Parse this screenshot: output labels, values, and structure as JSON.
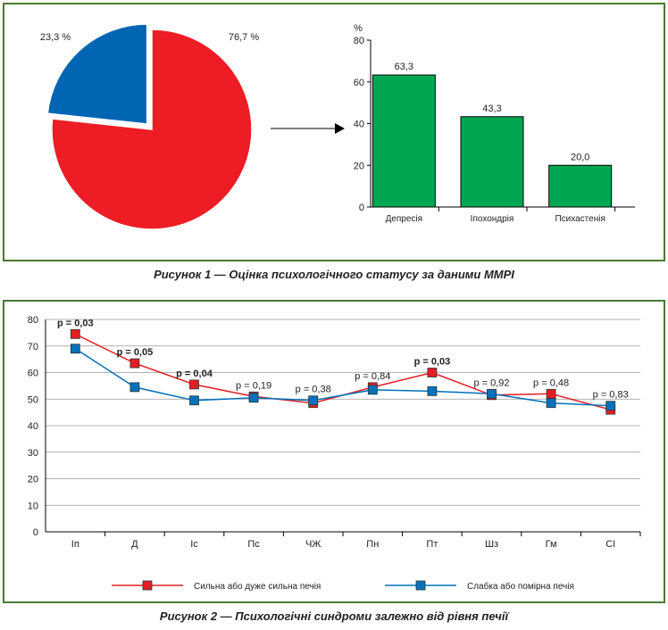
{
  "figure1": {
    "caption": "Рисунок 1 — Оцінка психологічного статусу за даними ММРІ",
    "pie": {
      "type": "pie",
      "slices": [
        {
          "label": "76,7 %",
          "value": 76.7,
          "color": "#ee1c25"
        },
        {
          "label": "23,3 %",
          "value": 23.3,
          "color": "#0066b3"
        }
      ]
    },
    "bar": {
      "type": "bar",
      "ylabel": "%",
      "ylim": [
        0,
        80
      ],
      "yticks": [
        0,
        20,
        40,
        60,
        80
      ],
      "categories": [
        "Депресія",
        "Іпохондрія",
        "Психастенія"
      ],
      "values": [
        63.3,
        43.3,
        20.0
      ],
      "value_labels": [
        "63,3",
        "43,3",
        "20,0"
      ],
      "color": "#00a651"
    }
  },
  "figure2": {
    "caption": "Рисунок 2 — Психологічні синдроми залежно від рівня печії",
    "chart": {
      "type": "line",
      "ylim": [
        0,
        80
      ],
      "yticks": [
        0,
        10,
        20,
        30,
        40,
        50,
        60,
        70,
        80
      ],
      "categories": [
        "Іп",
        "Д",
        "Іс",
        "Пс",
        "ЧЖ",
        "Пн",
        "Пт",
        "Шз",
        "Гм",
        "СІ"
      ],
      "series": [
        {
          "name": "Сильна або дуже сильна печія",
          "color": "#e31e24",
          "values": [
            74.5,
            63.5,
            55.5,
            51,
            48.5,
            54.5,
            60,
            51.5,
            52,
            46
          ]
        },
        {
          "name": "Слабка або помірна печія",
          "color": "#0072bc",
          "values": [
            69,
            54.5,
            49.5,
            50.5,
            49.5,
            53.5,
            53,
            52,
            48.5,
            47.5
          ]
        }
      ],
      "annotations": [
        {
          "text": "p = 0,03",
          "bold": true
        },
        {
          "text": "p = 0,05",
          "bold": true
        },
        {
          "text": "p = 0,04",
          "bold": true
        },
        {
          "text": "p = 0,19",
          "bold": false
        },
        {
          "text": "p = 0,38",
          "bold": false
        },
        {
          "text": "p = 0,84",
          "bold": false
        },
        {
          "text": "p = 0,03",
          "bold": true
        },
        {
          "text": "p = 0,92",
          "bold": false
        },
        {
          "text": "p = 0,48",
          "bold": false
        },
        {
          "text": "p = 0,83",
          "bold": false
        }
      ]
    }
  }
}
